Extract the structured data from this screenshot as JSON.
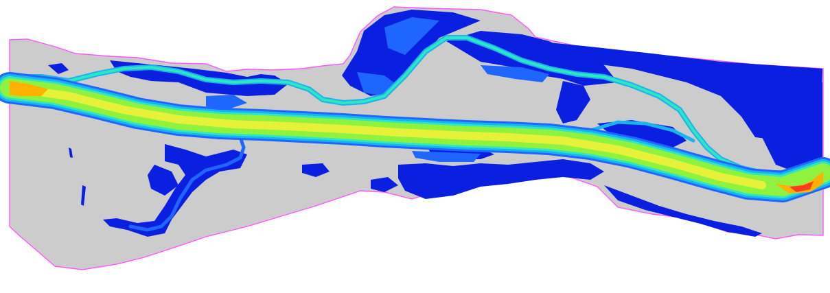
{
  "map": {
    "type": "river-flow-simulation-raster",
    "colors": {
      "background": "#ffffff",
      "domain_fill": "#cccccc",
      "domain_boundary": "#ff55ff",
      "shallow": "#0a1fe0",
      "low": "#1e66ff",
      "medium_low": "#19b3ee",
      "medium": "#2ee6c4",
      "medium_high": "#8ef23e",
      "high": "#e6f23a",
      "very_high": "#ffb000",
      "peak": "#ff3c1e"
    }
  }
}
